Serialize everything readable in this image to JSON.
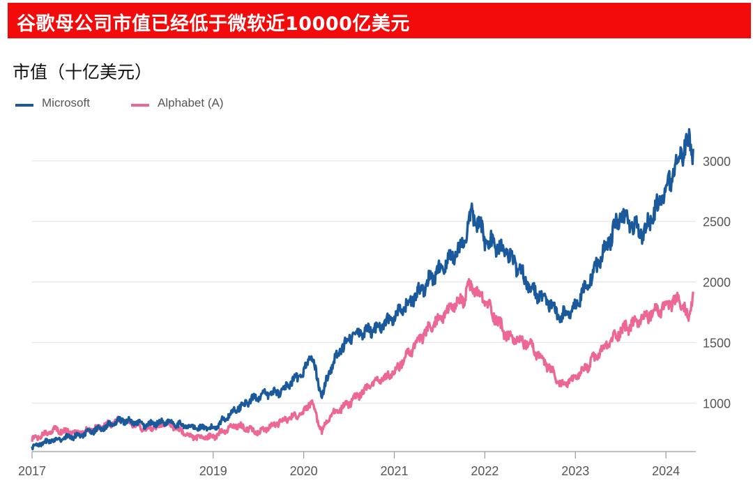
{
  "header": {
    "title": "谷歌母公司市值已经低于微软近10000亿美元"
  },
  "subtitle": "市值（十亿美元）",
  "legend": [
    {
      "name": "Microsoft",
      "color": "#1a5a9c"
    },
    {
      "name": "Alphabet (A)",
      "color": "#ec6795"
    }
  ],
  "chart_data": {
    "type": "line",
    "title": "谷歌母公司市值已经低于微软近10000亿美元",
    "ylabel": "市值（十亿美元）",
    "xlim": [
      2017.0,
      2024.33
    ],
    "ylim": [
      600,
      3200
    ],
    "x_ticks": [
      "2017",
      "2019",
      "2020",
      "2021",
      "2022",
      "2023",
      "2024"
    ],
    "y_ticks": [
      "1000",
      "1500",
      "2000",
      "2500",
      "3000"
    ],
    "grid": "horizontal",
    "legend_position": "top-left",
    "series": [
      {
        "name": "Microsoft",
        "color": "#1a5a9c",
        "x": [
          2017.0,
          2017.25,
          2017.5,
          2017.75,
          2018.0,
          2018.25,
          2018.5,
          2018.75,
          2019.0,
          2019.25,
          2019.5,
          2019.75,
          2020.0,
          2020.08,
          2020.2,
          2020.3,
          2020.5,
          2020.75,
          2021.0,
          2021.25,
          2021.5,
          2021.75,
          2021.85,
          2021.92,
          2022.0,
          2022.25,
          2022.5,
          2022.75,
          2022.83,
          2023.0,
          2023.25,
          2023.5,
          2023.75,
          2024.0,
          2024.15,
          2024.25,
          2024.3
        ],
        "values": [
          640,
          700,
          730,
          790,
          860,
          820,
          850,
          800,
          790,
          950,
          1060,
          1100,
          1250,
          1410,
          1050,
          1300,
          1550,
          1600,
          1700,
          1900,
          2100,
          2300,
          2550,
          2500,
          2350,
          2250,
          1950,
          1800,
          1700,
          1800,
          2150,
          2550,
          2400,
          2750,
          3050,
          3150,
          3100
        ]
      },
      {
        "name": "Alphabet (A)",
        "color": "#ec6795",
        "x": [
          2017.0,
          2017.25,
          2017.5,
          2017.75,
          2018.0,
          2018.25,
          2018.5,
          2018.75,
          2019.0,
          2019.25,
          2019.5,
          2019.75,
          2020.0,
          2020.08,
          2020.2,
          2020.3,
          2020.5,
          2020.75,
          2021.0,
          2021.25,
          2021.5,
          2021.75,
          2021.85,
          2021.92,
          2022.0,
          2022.25,
          2022.5,
          2022.75,
          2022.83,
          2023.0,
          2023.25,
          2023.5,
          2023.75,
          2024.0,
          2024.15,
          2024.25,
          2024.3
        ],
        "values": [
          700,
          780,
          750,
          800,
          870,
          780,
          830,
          720,
          720,
          820,
          760,
          850,
          920,
          1020,
          760,
          900,
          1000,
          1150,
          1250,
          1500,
          1700,
          1850,
          1970,
          1900,
          1850,
          1550,
          1480,
          1250,
          1150,
          1200,
          1400,
          1600,
          1700,
          1800,
          1850,
          1700,
          1920
        ]
      }
    ]
  }
}
